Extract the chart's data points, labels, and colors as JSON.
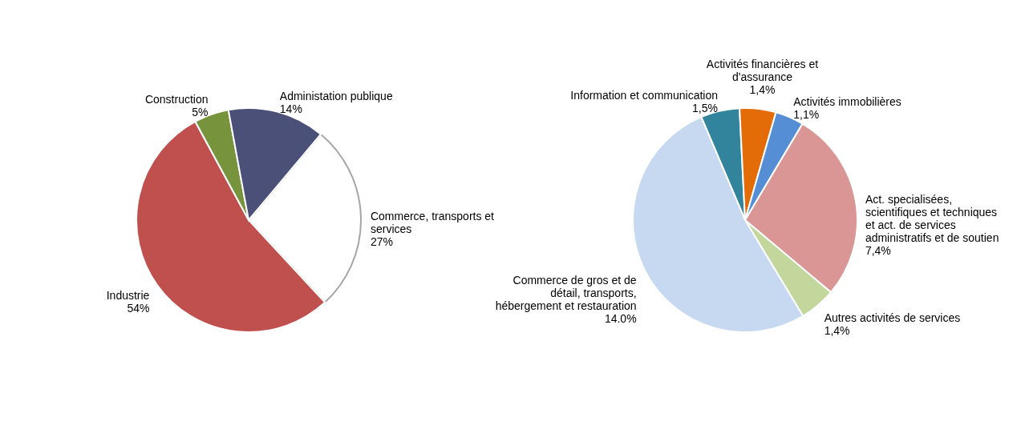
{
  "chart_data": [
    {
      "type": "pie",
      "categories": [
        "Commerce, transports et services",
        "Industrie",
        "Construction",
        "Administation publique"
      ],
      "values": [
        27,
        54,
        5,
        14
      ],
      "value_labels": [
        "27%",
        "54%",
        "5%",
        "14%"
      ],
      "colors": [
        "#ffffff",
        "#c0504d",
        "#77933c",
        "#4a5078"
      ]
    },
    {
      "type": "pie",
      "categories": [
        "Information et communication",
        "Activités financières et d'assurance",
        "Activités immobilières",
        "Act. specialisées, scientifiques et techniques et act. de services administratifs et de soutien",
        "Autres activités de services",
        "Commerce de gros et de détail, transports, hébergement et restauration"
      ],
      "values": [
        1.5,
        1.4,
        1.1,
        7.4,
        1.4,
        14.0
      ],
      "value_labels": [
        "1,5%",
        "1,4%",
        "1,1%",
        "7,4%",
        "1,4%",
        "14.0%"
      ],
      "colors": [
        "#31849b",
        "#e36c09",
        "#558ed5",
        "#d99694",
        "#c3d69b",
        "#c6d9f0"
      ]
    }
  ]
}
